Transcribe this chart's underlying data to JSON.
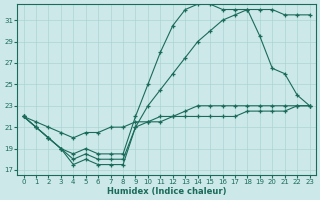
{
  "xlabel": "Humidex (Indice chaleur)",
  "bg_color": "#cce8e8",
  "line_color": "#1a6b5a",
  "grid_color": "#aad4d4",
  "xlim": [
    -0.5,
    23.5
  ],
  "ylim": [
    16.5,
    32.5
  ],
  "yticks": [
    17,
    19,
    21,
    23,
    25,
    27,
    29,
    31
  ],
  "xticks": [
    0,
    1,
    2,
    3,
    4,
    5,
    6,
    7,
    8,
    9,
    10,
    11,
    12,
    13,
    14,
    15,
    16,
    17,
    18,
    19,
    20,
    21,
    22,
    23
  ],
  "lines": [
    {
      "x": [
        0,
        1,
        2,
        3,
        4,
        5,
        6,
        7,
        8,
        9,
        10,
        11,
        12,
        13,
        14,
        15,
        16,
        17,
        18,
        19,
        20,
        21,
        22,
        23
      ],
      "y": [
        22,
        21.5,
        21,
        20.5,
        20,
        20.5,
        20.5,
        21,
        21,
        21.5,
        21.5,
        22,
        22,
        22.5,
        23,
        23,
        23,
        23,
        23,
        23,
        23,
        23,
        23,
        23
      ]
    },
    {
      "x": [
        0,
        1,
        2,
        3,
        4,
        5,
        6,
        7,
        8,
        9,
        10,
        11,
        12,
        13,
        14,
        15,
        16,
        17,
        18,
        19,
        20,
        21,
        22,
        23
      ],
      "y": [
        22,
        21,
        20,
        19,
        17.5,
        18,
        17.5,
        17.5,
        17.5,
        21,
        21.5,
        21.5,
        22,
        22,
        22,
        22,
        22,
        22,
        22.5,
        22.5,
        22.5,
        22.5,
        23,
        23
      ]
    },
    {
      "x": [
        0,
        1,
        2,
        3,
        4,
        5,
        6,
        7,
        8,
        9,
        10,
        11,
        12,
        13,
        14,
        15,
        16,
        17,
        18,
        19,
        20,
        21,
        22,
        23
      ],
      "y": [
        22,
        21,
        20,
        19,
        18,
        18.5,
        18,
        18,
        18,
        21,
        23,
        24.5,
        26,
        27.5,
        29,
        30,
        31,
        31.5,
        32,
        29.5,
        26.5,
        26,
        24,
        23
      ]
    },
    {
      "x": [
        0,
        1,
        2,
        3,
        4,
        5,
        6,
        7,
        8,
        9,
        10,
        11,
        12,
        13,
        14,
        15,
        16,
        17,
        18,
        19,
        20,
        21,
        22,
        23
      ],
      "y": [
        22,
        21,
        20,
        19,
        18.5,
        19,
        18.5,
        18.5,
        18.5,
        22,
        25,
        28,
        30.5,
        32,
        32.5,
        32.5,
        32,
        32,
        32,
        32,
        32,
        31.5,
        31.5,
        31.5
      ]
    }
  ]
}
